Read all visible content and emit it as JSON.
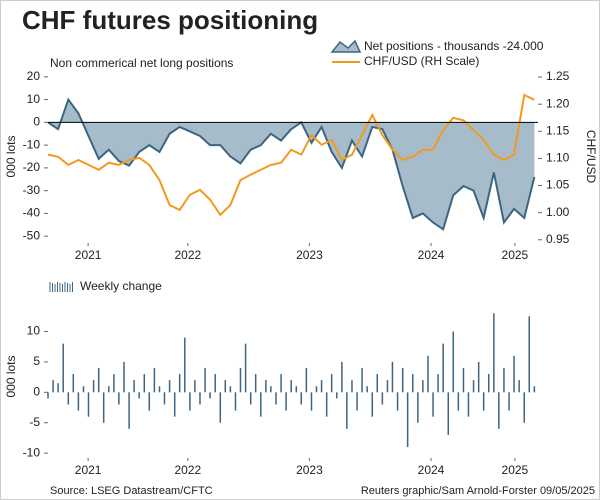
{
  "title": "CHF futures positioning",
  "source": "Source: LSEG Datastream/CFTC",
  "credit": "Reuters graphic/Sam Arnold-Forster 09/05/2025",
  "chart_data": [
    {
      "type": "area",
      "subtitle": "Non commerical net long positions",
      "y_label": "000 lots",
      "y2_label": "CHF/USD",
      "x": [
        2021.35,
        2021.433,
        2021.517,
        2021.6,
        2021.683,
        2021.767,
        2021.85,
        2021.933,
        2022.017,
        2022.1,
        2022.183,
        2022.267,
        2022.35,
        2022.433,
        2022.517,
        2022.6,
        2022.683,
        2022.767,
        2022.85,
        2022.933,
        2023.017,
        2023.1,
        2023.183,
        2023.267,
        2023.35,
        2023.433,
        2023.517,
        2023.6,
        2023.683,
        2023.767,
        2023.85,
        2023.933,
        2024.017,
        2024.1,
        2024.183,
        2024.267,
        2024.35,
        2024.433,
        2024.517,
        2024.6,
        2024.683,
        2024.767,
        2024.85,
        2024.933,
        2025.017,
        2025.1,
        2025.183,
        2025.267,
        2025.35
      ],
      "series": [
        {
          "name": "Net positions - thousands -24.000",
          "type": "area",
          "color": "#a6bccb",
          "line_color": "#3d6582",
          "values": [
            0,
            -3,
            10,
            4,
            -6,
            -16,
            -12,
            -17,
            -19,
            -13,
            -10,
            -13,
            -5,
            -2,
            -4,
            -6,
            -10,
            -10,
            -15,
            -18,
            -12,
            -10,
            -5,
            -8,
            -3,
            0,
            -9,
            -2,
            -13,
            -20,
            -8,
            -15,
            -2,
            -3,
            -12,
            -28,
            -42,
            -40,
            -44,
            -47,
            -32,
            -28,
            -30,
            -42,
            -22,
            -44,
            -38,
            -42,
            -24
          ]
        },
        {
          "name": "CHF/USD (RH Scale)",
          "type": "line",
          "color": "#f39a1e",
          "axis": "y2",
          "values": [
            1.107,
            1.103,
            1.088,
            1.097,
            1.088,
            1.079,
            1.092,
            1.088,
            1.097,
            1.101,
            1.088,
            1.06,
            1.014,
            1.005,
            1.033,
            1.042,
            1.024,
            0.996,
            1.014,
            1.06,
            1.07,
            1.079,
            1.088,
            1.092,
            1.116,
            1.107,
            1.143,
            1.125,
            1.134,
            1.097,
            1.107,
            1.143,
            1.18,
            1.143,
            1.116,
            1.097,
            1.103,
            1.116,
            1.116,
            1.152,
            1.175,
            1.17,
            1.152,
            1.134,
            1.107,
            1.097,
            1.107,
            1.217,
            1.208
          ]
        }
      ],
      "xlim": [
        2021.35,
        2025.38
      ],
      "xticks": [
        {
          "value": 2021.68,
          "label": "2021"
        },
        {
          "value": 2022.5,
          "label": "2022"
        },
        {
          "value": 2023.5,
          "label": "2023"
        },
        {
          "value": 2024.5,
          "label": "2024"
        },
        {
          "value": 2025.19,
          "label": "2025"
        }
      ],
      "ylim": [
        -53,
        23
      ],
      "yticks": [
        -50,
        -40,
        -30,
        -20,
        -10,
        0,
        10,
        20
      ],
      "y2lim": [
        0.944,
        1.263
      ],
      "y2ticks": [
        0.95,
        {
          "value": 1,
          "label": "1.00"
        },
        1.05,
        {
          "value": 1.1,
          "label": "1.10"
        },
        1.15,
        {
          "value": 1.2,
          "label": "1.20"
        },
        1.25
      ],
      "zero_line": true,
      "grid": false
    },
    {
      "type": "bar",
      "y_label": "000 lots",
      "series": [
        {
          "name": "Weekly change",
          "color": "#3d6582",
          "values": [
            -1,
            2,
            1.5,
            8,
            -2,
            3,
            -3,
            1,
            -4,
            2,
            4,
            -5,
            1,
            3,
            -2,
            5,
            -6,
            2,
            -1,
            3,
            -3,
            4,
            1,
            -2,
            2,
            -4,
            3,
            9,
            -3,
            2,
            -2,
            4,
            -1,
            3,
            -5,
            2,
            1,
            -3,
            4,
            8,
            -2,
            3,
            -4,
            2,
            1,
            -2,
            3,
            -3,
            2,
            1,
            -2,
            4,
            -3,
            1,
            2,
            -4,
            3,
            -1,
            5,
            -6,
            2,
            -3,
            4,
            1,
            -4,
            3,
            -2,
            2,
            5,
            -3,
            4,
            -9,
            3,
            -5,
            2,
            6,
            -4,
            3,
            8,
            -7,
            10,
            -3,
            4,
            -4,
            2,
            5,
            -3,
            3,
            13,
            -6,
            4,
            -3,
            6,
            2,
            -5,
            12.5,
            1
          ]
        }
      ],
      "x": [
        2021.35,
        2021.392,
        2021.433,
        2021.475,
        2021.517,
        2021.558,
        2021.6,
        2021.642,
        2021.683,
        2021.725,
        2021.767,
        2021.808,
        2021.85,
        2021.892,
        2021.933,
        2021.975,
        2022.017,
        2022.058,
        2022.1,
        2022.142,
        2022.183,
        2022.225,
        2022.267,
        2022.308,
        2022.35,
        2022.392,
        2022.433,
        2022.475,
        2022.517,
        2022.558,
        2022.6,
        2022.642,
        2022.683,
        2022.725,
        2022.767,
        2022.808,
        2022.85,
        2022.892,
        2022.933,
        2022.975,
        2023.017,
        2023.058,
        2023.1,
        2023.142,
        2023.183,
        2023.225,
        2023.267,
        2023.308,
        2023.35,
        2023.392,
        2023.433,
        2023.475,
        2023.517,
        2023.558,
        2023.6,
        2023.642,
        2023.683,
        2023.725,
        2023.767,
        2023.808,
        2023.85,
        2023.892,
        2023.933,
        2023.975,
        2024.017,
        2024.058,
        2024.1,
        2024.142,
        2024.183,
        2024.225,
        2024.267,
        2024.308,
        2024.35,
        2024.392,
        2024.433,
        2024.475,
        2024.517,
        2024.558,
        2024.6,
        2024.642,
        2024.683,
        2024.725,
        2024.767,
        2024.808,
        2024.85,
        2024.892,
        2024.933,
        2024.975,
        2025.017,
        2025.058,
        2025.1,
        2025.142,
        2025.183,
        2025.225,
        2025.267,
        2025.308,
        2025.35
      ],
      "xlim": [
        2021.35,
        2025.38
      ],
      "xticks": [
        {
          "value": 2021.68,
          "label": "2021"
        },
        {
          "value": 2022.5,
          "label": "2022"
        },
        {
          "value": 2023.5,
          "label": "2023"
        },
        {
          "value": 2024.5,
          "label": "2024"
        },
        {
          "value": 2025.19,
          "label": "2025"
        }
      ],
      "ylim": [
        -10.8,
        16
      ],
      "yticks": [
        -10,
        -5,
        0,
        5,
        10
      ],
      "grid": false
    }
  ]
}
